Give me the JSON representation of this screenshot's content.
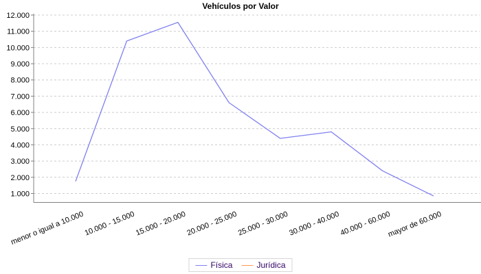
{
  "chart_data": {
    "type": "line",
    "title": "Vehículos por Valor",
    "categories": [
      "menor o igual a 10.000",
      "10.000 - 15.000",
      "15.000 - 20.000",
      "20.000 - 25.000",
      "25.000 - 30.000",
      "30.000 - 40.000",
      "40.000 - 60.000",
      "mayor de 60.000"
    ],
    "series": [
      {
        "name": "Física",
        "color": "#8080f0",
        "values": [
          1750,
          10400,
          11550,
          6600,
          4400,
          4800,
          2400,
          850
        ]
      },
      {
        "name": "Jurídica",
        "color": "#ff9955",
        "values": []
      }
    ],
    "y_ticks": [
      "1.000",
      "2.000",
      "3.000",
      "4.000",
      "5.000",
      "6.000",
      "7.000",
      "8.000",
      "9.000",
      "10.000",
      "11.000",
      "12.000"
    ],
    "ylim": [
      450,
      12000
    ],
    "grid": "horizontal dashed",
    "legend_position": "bottom-center",
    "x_label_rotation_deg": -22
  },
  "colors": {
    "background": "#ffffff",
    "grid": "#cccccc",
    "axis": "#808080",
    "tick_text": "#000000",
    "legend_text": "#330066",
    "legend_border": "#d6d6d6"
  }
}
